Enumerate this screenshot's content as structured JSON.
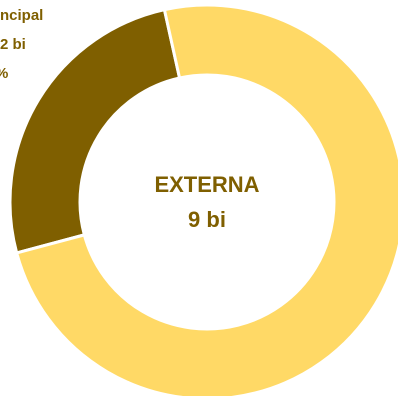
{
  "chart_data": {
    "type": "pie",
    "donut": true,
    "center_label": {
      "line1": "EXTERNA",
      "line2": "9 bi"
    },
    "slices": [
      {
        "label_lines": [
          "ncipal",
          "2 bi",
          "%"
        ],
        "value": 25.7,
        "color": "#7f5f00"
      },
      {
        "label_lines": [
          "",
          "",
          ""
        ],
        "value": 74.3,
        "color": "#ffd966"
      }
    ],
    "separator_color": "#ffffff",
    "center_text_color": "#7f5f00",
    "label_text_color": "#7f5f00"
  }
}
